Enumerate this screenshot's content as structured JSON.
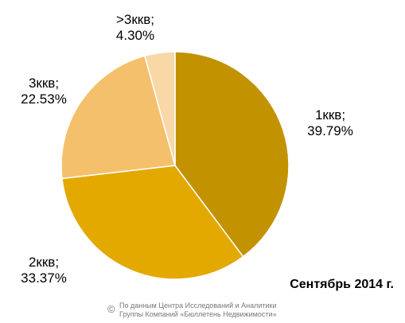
{
  "chart_data": {
    "type": "pie",
    "categories": [
      "1ккв;",
      "2ккв;",
      "3ккв;",
      ">3ккв;"
    ],
    "values": [
      39.79,
      33.37,
      22.53,
      4.3
    ],
    "value_labels": [
      "39.79%",
      "33.37%",
      "22.53%",
      "4.30%"
    ],
    "colors": [
      "#c29200",
      "#e3a900",
      "#f5c06b",
      "#f9d8a8"
    ],
    "annotations": [
      "Сентябрь 2014 г."
    ],
    "source": {
      "symbol": "©",
      "lines": [
        "По данным Центра Исследований и Аналитики",
        "Группы Компаний «Бюллетень Недвижимости»"
      ]
    }
  }
}
